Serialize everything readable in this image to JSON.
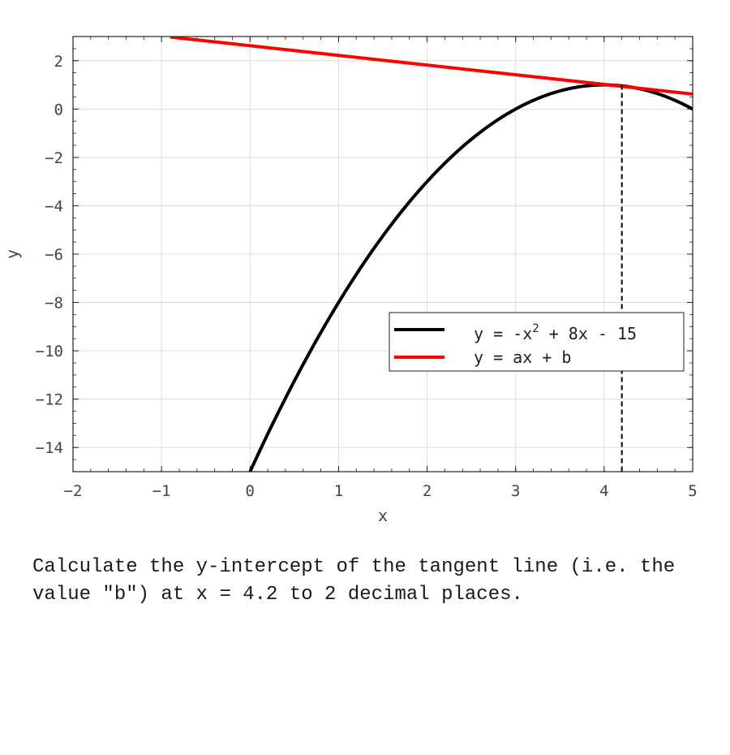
{
  "chart_data": {
    "type": "line",
    "xlabel": "x",
    "ylabel": "y",
    "xlim": [
      -2,
      5
    ],
    "ylim": [
      -15,
      3
    ],
    "xticks": [
      -2,
      -1,
      0,
      1,
      2,
      3,
      4,
      5
    ],
    "yticks": [
      -14,
      -12,
      -10,
      -8,
      -6,
      -4,
      -2,
      0,
      2
    ],
    "grid": true,
    "legend_position": "center-right",
    "series": [
      {
        "name_parts": {
          "base": "y = -x",
          "sup": "2",
          "rest": " + 8x - 15"
        },
        "color": "#000000",
        "function": "-x^2 + 8x - 15",
        "x": [
          0,
          0.5,
          1,
          1.5,
          2,
          2.5,
          3,
          3.5,
          4,
          4.5,
          5
        ],
        "y": [
          -15,
          -11.25,
          -8,
          -5.25,
          -3,
          -1.25,
          0,
          0.75,
          1,
          0.75,
          0
        ]
      },
      {
        "name": "y = ax + b",
        "color": "#ff0000",
        "x": [
          -0.9,
          5
        ],
        "y": [
          2.98,
          0.62
        ]
      }
    ],
    "annotations": [
      {
        "type": "vline",
        "x": 4.2,
        "style": "dashed",
        "color": "#000000"
      }
    ]
  },
  "question": {
    "text": "Calculate the y-intercept of the tangent line (i.e. the value \"b\") at x = 4.2 to 2 decimal places."
  }
}
